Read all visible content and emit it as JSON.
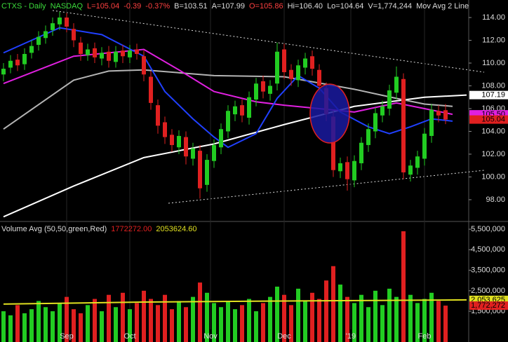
{
  "chart_data": [
    {
      "type": "candlestick",
      "header": [
        {
          "text": "CTXS - Daily",
          "color": "#3cdc3c"
        },
        {
          "text": "NASDAQ",
          "color": "#3cdc3c"
        },
        {
          "text": "L=105.04",
          "color": "#ff4040"
        },
        {
          "text": "-0.39",
          "color": "#ff4040"
        },
        {
          "text": "-0.37%",
          "color": "#ff4040"
        },
        {
          "text": "B=103.51",
          "color": "#dcdcdc"
        },
        {
          "text": "A=107.99",
          "color": "#dcdcdc"
        },
        {
          "text": "O=105.86",
          "color": "#ff4040"
        },
        {
          "text": "Hi=106.40",
          "color": "#dcdcdc"
        },
        {
          "text": "Lo=104.64",
          "color": "#dcdcdc"
        },
        {
          "text": "V=1,774,244",
          "color": "#dcdcdc"
        },
        {
          "text": "Mov Avg 2 Line",
          "color": "#dcdcdc"
        }
      ],
      "up_color": "#22cc22",
      "down_color": "#e02020",
      "open": [
        109.0,
        109.6,
        110.3,
        109.9,
        110.9,
        111.6,
        112.2,
        112.9,
        113.4,
        114.0,
        113.0,
        111.8,
        110.7,
        111.3,
        110.4,
        111.0,
        110.1,
        111.1,
        110.5,
        111.2,
        110.6,
        108.8,
        106.3,
        104.8,
        103.7,
        102.6,
        103.5,
        101.6,
        102.3,
        99.3,
        101.4,
        102.6,
        104.0,
        105.5,
        106.3,
        105.2,
        106.8,
        108.4,
        107.3,
        108.2,
        111.2,
        109.4,
        108.5,
        109.6,
        110.6,
        109.4,
        107.8,
        105.3,
        100.5,
        101.3,
        99.7,
        101.2,
        102.8,
        104.0,
        105.4,
        106.0,
        107.4,
        108.6,
        100.2,
        100.8,
        101.6,
        103.6,
        105.8,
        105.86
      ],
      "high": [
        110.0,
        110.7,
        110.8,
        111.3,
        112.0,
        112.8,
        113.3,
        114.0,
        114.5,
        114.4,
        113.5,
        112.3,
        111.7,
        111.8,
        111.4,
        111.5,
        111.5,
        111.6,
        111.6,
        111.7,
        111.1,
        109.3,
        106.8,
        105.3,
        104.2,
        104.1,
        104.0,
        103.0,
        102.8,
        102.0,
        103.3,
        104.7,
        106.3,
        106.7,
        106.8,
        107.5,
        108.7,
        108.9,
        108.5,
        111.8,
        111.7,
        109.9,
        110.3,
        110.9,
        111.1,
        109.9,
        108.3,
        105.8,
        101.7,
        101.8,
        101.9,
        103.5,
        104.7,
        106.1,
        106.7,
        108.1,
        109.7,
        109.1,
        101.5,
        102.3,
        104.3,
        106.4,
        106.3,
        106.4
      ],
      "low": [
        108.4,
        109.1,
        109.3,
        109.4,
        110.4,
        111.1,
        111.7,
        112.4,
        112.9,
        112.7,
        111.4,
        110.2,
        110.2,
        110.0,
        109.8,
        109.6,
        109.6,
        110.0,
        110.0,
        110.3,
        108.4,
        105.9,
        103.8,
        102.9,
        102.2,
        102.0,
        101.1,
        101.0,
        98.1,
        98.7,
        100.8,
        102.0,
        103.4,
        104.9,
        104.8,
        104.6,
        106.2,
        106.9,
        106.7,
        107.6,
        108.6,
        108.0,
        107.9,
        109.0,
        108.9,
        107.4,
        104.9,
        100.0,
        99.9,
        98.8,
        99.1,
        100.6,
        102.2,
        103.4,
        104.8,
        105.4,
        106.8,
        99.8,
        99.6,
        100.2,
        101.0,
        103.0,
        104.8,
        104.64
      ],
      "close": [
        109.5,
        110.2,
        109.8,
        110.8,
        111.5,
        112.3,
        112.8,
        113.5,
        114.0,
        113.2,
        112.0,
        110.8,
        111.2,
        110.5,
        110.9,
        110.2,
        111.0,
        110.6,
        111.1,
        110.8,
        109.0,
        106.5,
        104.5,
        103.5,
        102.8,
        103.6,
        101.8,
        102.5,
        99.0,
        101.5,
        102.8,
        104.2,
        105.8,
        106.2,
        105.4,
        107.0,
        108.2,
        107.5,
        108.0,
        111.0,
        109.2,
        108.6,
        109.8,
        110.4,
        109.5,
        108.0,
        105.5,
        100.6,
        101.2,
        99.8,
        101.4,
        103.0,
        104.2,
        105.6,
        106.2,
        107.6,
        108.8,
        100.4,
        101.0,
        101.8,
        103.8,
        105.9,
        105.4,
        105.04
      ],
      "series": [
        {
          "color": "#ffffff",
          "x": [
            0,
            10,
            20,
            30,
            40,
            50,
            60,
            66
          ],
          "values": [
            96.5,
            99.2,
            101.7,
            102.9,
            104.6,
            106.2,
            107.0,
            107.19
          ]
        },
        {
          "color": "#b4b4b4",
          "x": [
            0,
            10,
            15,
            20,
            30,
            40,
            50,
            56,
            60,
            64
          ],
          "values": [
            104.2,
            108.5,
            109.3,
            109.4,
            108.9,
            108.8,
            107.7,
            106.9,
            106.4,
            106.2
          ]
        },
        {
          "color": "#e020e0",
          "x": [
            0,
            10,
            20,
            25,
            30,
            36,
            40,
            50,
            56,
            60,
            64
          ],
          "values": [
            108.2,
            110.6,
            111.2,
            109.4,
            107.5,
            106.6,
            106.3,
            105.7,
            106.5,
            106.0,
            105.5
          ]
        },
        {
          "color": "#2040ff",
          "x": [
            0,
            8,
            14,
            20,
            23,
            27,
            30,
            32,
            36,
            39,
            42,
            45,
            48,
            52,
            55,
            58,
            61,
            64
          ],
          "values": [
            110.9,
            113.1,
            112.5,
            110.6,
            107.5,
            105.1,
            103.5,
            102.6,
            103.8,
            106.9,
            108.9,
            107.8,
            105.7,
            104.4,
            103.8,
            104.4,
            105.1,
            104.9
          ]
        }
      ],
      "xlim": [
        -0.5,
        66.3
      ],
      "ylim": [
        96.15,
        115.54
      ],
      "yticks": [
        {
          "value": 98,
          "label": "98.00"
        },
        {
          "value": 100,
          "label": "100.00"
        },
        {
          "value": 102,
          "label": "102.00"
        },
        {
          "value": 104,
          "label": "104.00"
        },
        {
          "value": 106,
          "label": "106.00"
        },
        {
          "value": 108,
          "label": "108.00"
        },
        {
          "value": 110,
          "label": "110.00"
        },
        {
          "value": 112,
          "label": "112.00"
        },
        {
          "value": 114,
          "label": "114.00"
        }
      ],
      "badges": [
        {
          "value": 107.19,
          "color": "#ffffff",
          "text_color": "#000000"
        },
        {
          "value": {
            "value": 105.5,
            "label": "105.50"
          },
          "color": "#e020e0",
          "text_color": "#000000"
        },
        {
          "value": 105.04,
          "color": "#e02020",
          "text_color": "#000000"
        }
      ]
    },
    {
      "type": "bar",
      "header": [
        {
          "text": "Volume Avg (50,50,green,Red)",
          "color": "#dcdcdc"
        },
        {
          "text": "1772272.00",
          "color": "#e02020"
        },
        {
          "text": "2053624.60",
          "color": "#e0e020"
        }
      ],
      "values": [
        1500000,
        1300000,
        1800000,
        1400000,
        1600000,
        2000000,
        1700000,
        1500000,
        1900000,
        2200000,
        1600000,
        1400000,
        1800000,
        2100000,
        1500000,
        2300000,
        1700000,
        2400000,
        1600000,
        1900000,
        2500000,
        2100000,
        1800000,
        2300000,
        1600000,
        2000000,
        1700000,
        2200000,
        2900000,
        2400000,
        1900000,
        1700000,
        2000000,
        1600000,
        1800000,
        2100000,
        1500000,
        1900000,
        2200000,
        2700000,
        2300000,
        1800000,
        2600000,
        2000000,
        2400000,
        2100000,
        3000000,
        3700000,
        2800000,
        2200000,
        1900000,
        2300000,
        1700000,
        2500000,
        1800000,
        2600000,
        2200000,
        5400000,
        2300000,
        1900000,
        2100000,
        2400000,
        2000000,
        1774244
      ],
      "series": [
        {
          "color": "#e0e020",
          "x": [
            0,
            20,
            40,
            66
          ],
          "values": [
            1850000,
            1950000,
            2000000,
            2053625
          ]
        }
      ],
      "ylim": [
        0,
        5810000
      ],
      "yticks": [
        {
          "value": 1500000,
          "label": "1,500,000"
        },
        {
          "value": 2500000,
          "label": "2,500,000"
        },
        {
          "value": 3500000,
          "label": "3,500,000"
        },
        {
          "value": 4500000,
          "label": "4,500,000"
        },
        {
          "value": 5500000,
          "label": "5,500,000"
        }
      ],
      "xticks": [
        {
          "value": 9,
          "label": "Sep"
        },
        {
          "value": 18,
          "label": "Oct"
        },
        {
          "value": 29.5,
          "label": "Nov"
        },
        {
          "value": 40,
          "label": "Dec"
        },
        {
          "value": 49.5,
          "label": "'19"
        },
        {
          "value": 60,
          "label": "Feb"
        }
      ],
      "badges": [
        {
          "value": {
            "value": 2053625,
            "label": "2,053,625"
          },
          "color": "#e0e020",
          "text_color": "#000000"
        },
        {
          "value": {
            "value": 1772272,
            "label": "1,772,272"
          },
          "color": "#e02020",
          "text_color": "#000000"
        }
      ]
    }
  ]
}
